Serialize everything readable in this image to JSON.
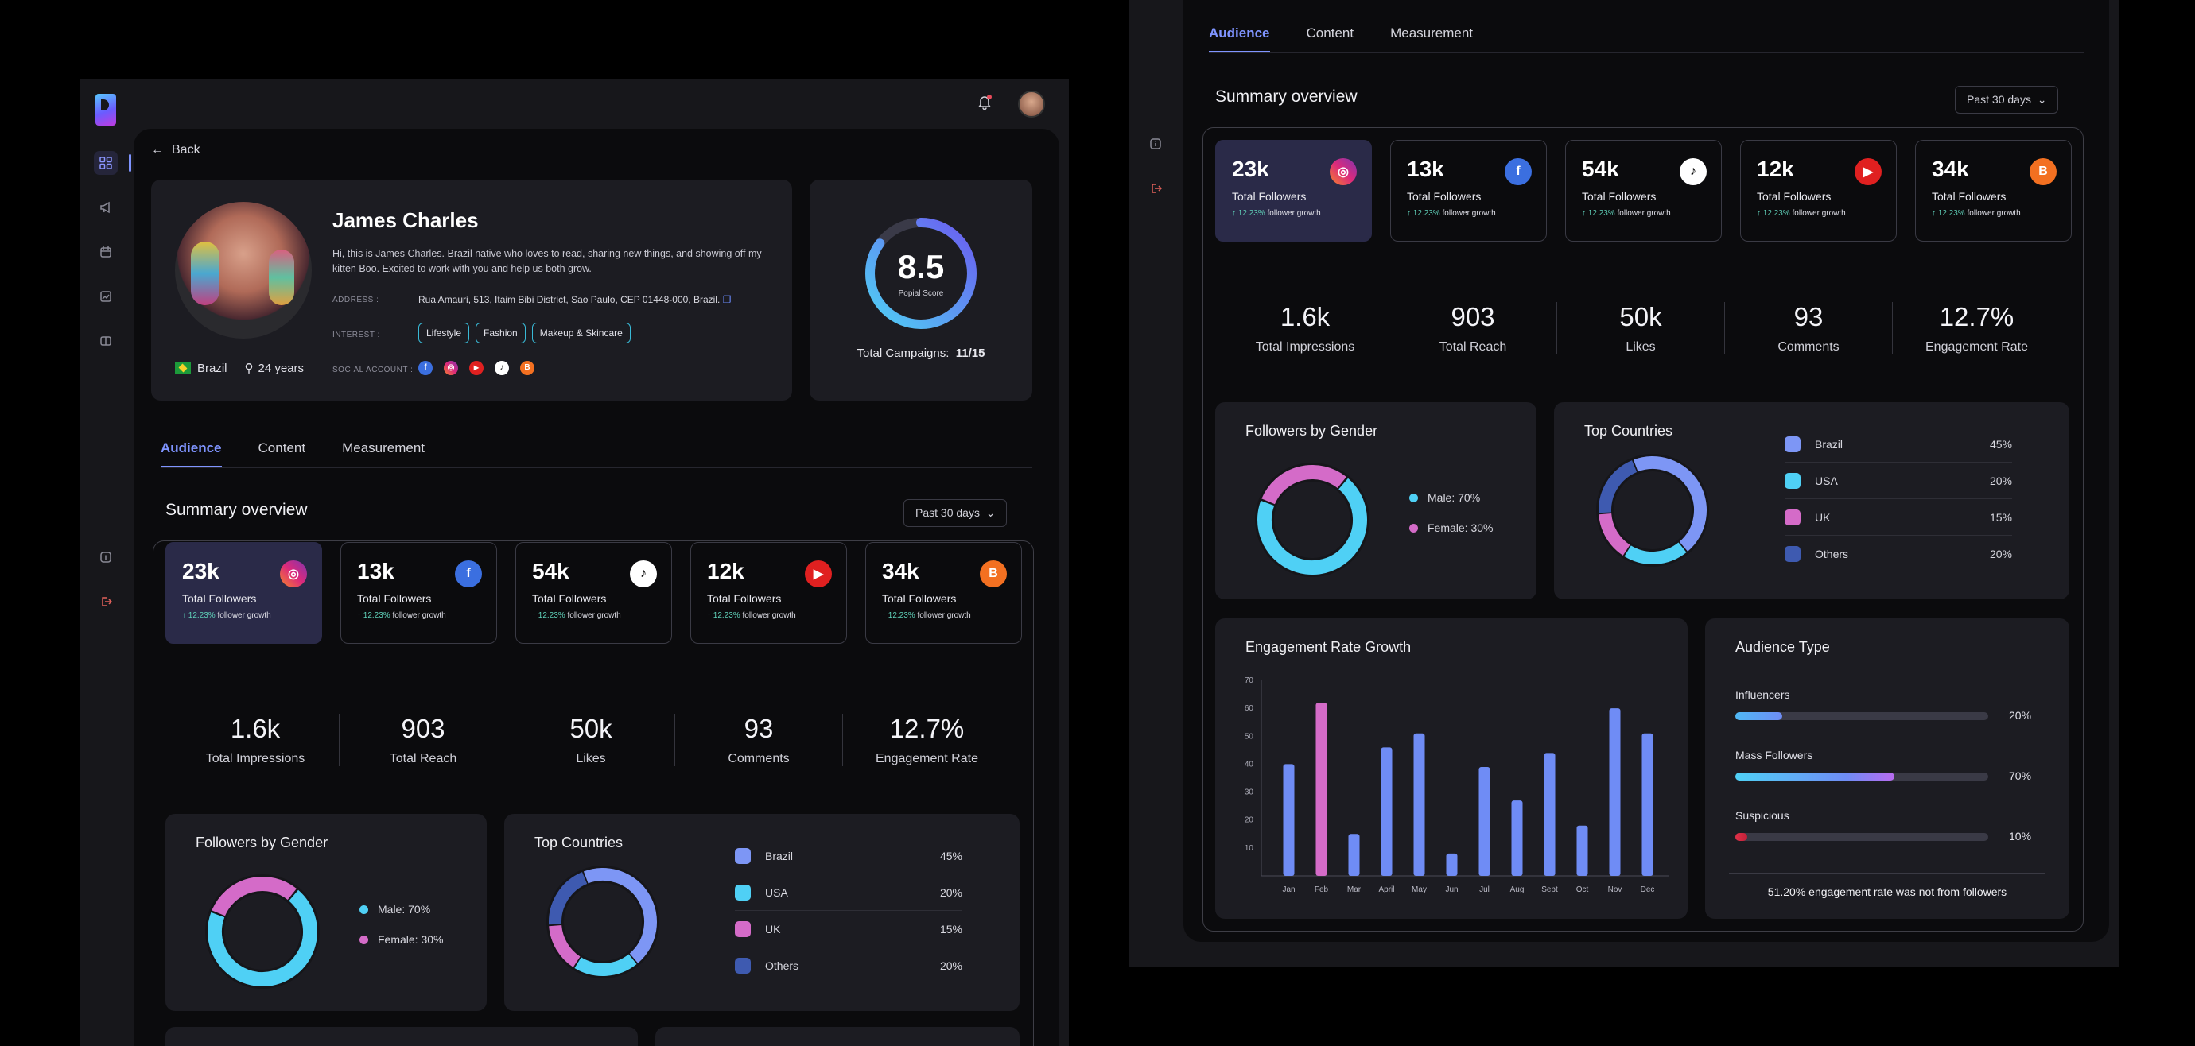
{
  "back_label": "Back",
  "profile": {
    "name": "James Charles",
    "bio": "Hi, this is James Charles. Brazil native who loves to read, sharing new things, and showing off my kitten Boo. Excited to work with you and help us both grow.",
    "address_label": "ADDRESS :",
    "address": "Rua Amauri, 513, Itaim Bibi District, Sao Paulo, CEP 01448-000, Brazil.",
    "interest_label": "INTEREST :",
    "interests": [
      "Lifestyle",
      "Fashion",
      "Makeup & Skincare"
    ],
    "social_label": "SOCIAL ACCOUNT :",
    "country": "Brazil",
    "age": "24 years"
  },
  "score": {
    "value": "8.5",
    "label": "Popial Score",
    "fraction": 0.85,
    "campaigns_label": "Total Campaigns:",
    "campaigns_value": "11/15"
  },
  "tabs": [
    "Audience",
    "Content",
    "Measurement"
  ],
  "summary_title": "Summary overview",
  "period": "Past 30 days",
  "follower_cards": [
    {
      "value": "23k",
      "label": "Total Followers",
      "growth": "12.23%",
      "growth_suffix": "follower growth",
      "platform": "instagram",
      "color": "#e1306c",
      "glyph": "◎"
    },
    {
      "value": "13k",
      "label": "Total Followers",
      "growth": "12.23%",
      "growth_suffix": "follower growth",
      "platform": "facebook",
      "color": "#3b6fe0",
      "glyph": "f"
    },
    {
      "value": "54k",
      "label": "Total Followers",
      "growth": "12.23%",
      "growth_suffix": "follower growth",
      "platform": "tiktok",
      "color": "#ffffff",
      "glyph": "♪"
    },
    {
      "value": "12k",
      "label": "Total Followers",
      "growth": "12.23%",
      "growth_suffix": "follower growth",
      "platform": "youtube",
      "color": "#e02020",
      "glyph": "▶"
    },
    {
      "value": "34k",
      "label": "Total Followers",
      "growth": "12.23%",
      "growth_suffix": "follower growth",
      "platform": "blogger",
      "color": "#f37021",
      "glyph": "B"
    }
  ],
  "metrics": [
    {
      "value": "1.6k",
      "label": "Total Impressions"
    },
    {
      "value": "903",
      "label": "Total Reach"
    },
    {
      "value": "50k",
      "label": "Likes"
    },
    {
      "value": "93",
      "label": "Comments"
    },
    {
      "value": "12.7%",
      "label": "Engagement Rate"
    }
  ],
  "gender": {
    "title": "Followers by Gender",
    "male_label": "Male: 70%",
    "female_label": "Female: 30%",
    "male": 70,
    "female": 30,
    "male_color": "#4fd0f5",
    "female_color": "#d46bc8"
  },
  "countries": {
    "title": "Top Countries",
    "rows": [
      {
        "name": "Brazil",
        "pct": "45%",
        "value": 45,
        "color": "#7d96f5"
      },
      {
        "name": "USA",
        "pct": "20%",
        "value": 20,
        "color": "#4fd0f5"
      },
      {
        "name": "UK",
        "pct": "15%",
        "value": 15,
        "color": "#d46bc8"
      },
      {
        "name": "Others",
        "pct": "20%",
        "value": 20,
        "color": "#3e5ab0"
      }
    ]
  },
  "chart_data": {
    "type": "bar",
    "title": "Engagement Rate Growth",
    "categories": [
      "Jan",
      "Feb",
      "Mar",
      "April",
      "May",
      "Jun",
      "Jul",
      "Aug",
      "Sept",
      "Oct",
      "Nov",
      "Dec"
    ],
    "values": [
      40,
      62,
      15,
      46,
      51,
      8,
      39,
      27,
      44,
      18,
      60,
      51
    ],
    "highlight": "Feb",
    "yticks": [
      10,
      20,
      30,
      40,
      50,
      60,
      70
    ],
    "ylim": [
      0,
      70
    ],
    "xlabel": "",
    "ylabel": ""
  },
  "audience_type": {
    "title": "Audience Type",
    "rows": [
      {
        "label": "Influencers",
        "pct": "20%",
        "value": 20
      },
      {
        "label": "Mass Followers",
        "pct": "70%",
        "value": 70
      },
      {
        "label": "Suspicious",
        "pct": "10%",
        "value": 10
      }
    ],
    "footer": "51.20% engagement rate was not from followers"
  }
}
